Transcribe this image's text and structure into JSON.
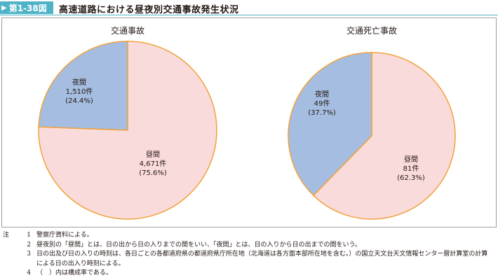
{
  "header": {
    "figure_label": "第1-38図",
    "title": "高速道路における昼夜別交通事故発生状況"
  },
  "chart_data": [
    {
      "type": "pie",
      "title": "交通事故",
      "slices": [
        {
          "name": "夜間",
          "value": 1510,
          "count_label": "1,510件",
          "percent_label": "(24.4%)",
          "percent": 24.4,
          "color": "#a5bde0"
        },
        {
          "name": "昼間",
          "value": 4671,
          "count_label": "4,671件",
          "percent_label": "(75.6%)",
          "percent": 75.6,
          "color": "#fadbdb"
        }
      ]
    },
    {
      "type": "pie",
      "title": "交通死亡事故",
      "slices": [
        {
          "name": "夜間",
          "value": 49,
          "count_label": "49件",
          "percent_label": "(37.7%)",
          "percent": 37.7,
          "color": "#a5bde0"
        },
        {
          "name": "昼間",
          "value": 81,
          "count_label": "81件",
          "percent_label": "(62.3%)",
          "percent": 62.3,
          "color": "#fadbdb"
        }
      ]
    }
  ],
  "colors": {
    "badge": "#4fb3c8",
    "pie_outline": "#f0a23c",
    "night": "#a5bde0",
    "day": "#fadbdb"
  },
  "notes": {
    "prefix": "注",
    "items": [
      {
        "num": "1",
        "text": "警察庁資料による。"
      },
      {
        "num": "2",
        "text": "昼夜別の「昼間」とは、日の出から日の入りまでの間をいい、「夜間」とは、日の入りから日の出までの間をいう。"
      },
      {
        "num": "3",
        "text": "日の出及び日の入りの時刻は、各日ごとの各都道府県の都道府県庁所在地（北海道は各方面本部所在地を含む。）の国立天文台天文情報センター暦計算室の計算による日の出入り時刻による。"
      },
      {
        "num": "4",
        "text": "（　）内は構成率である。"
      }
    ]
  }
}
